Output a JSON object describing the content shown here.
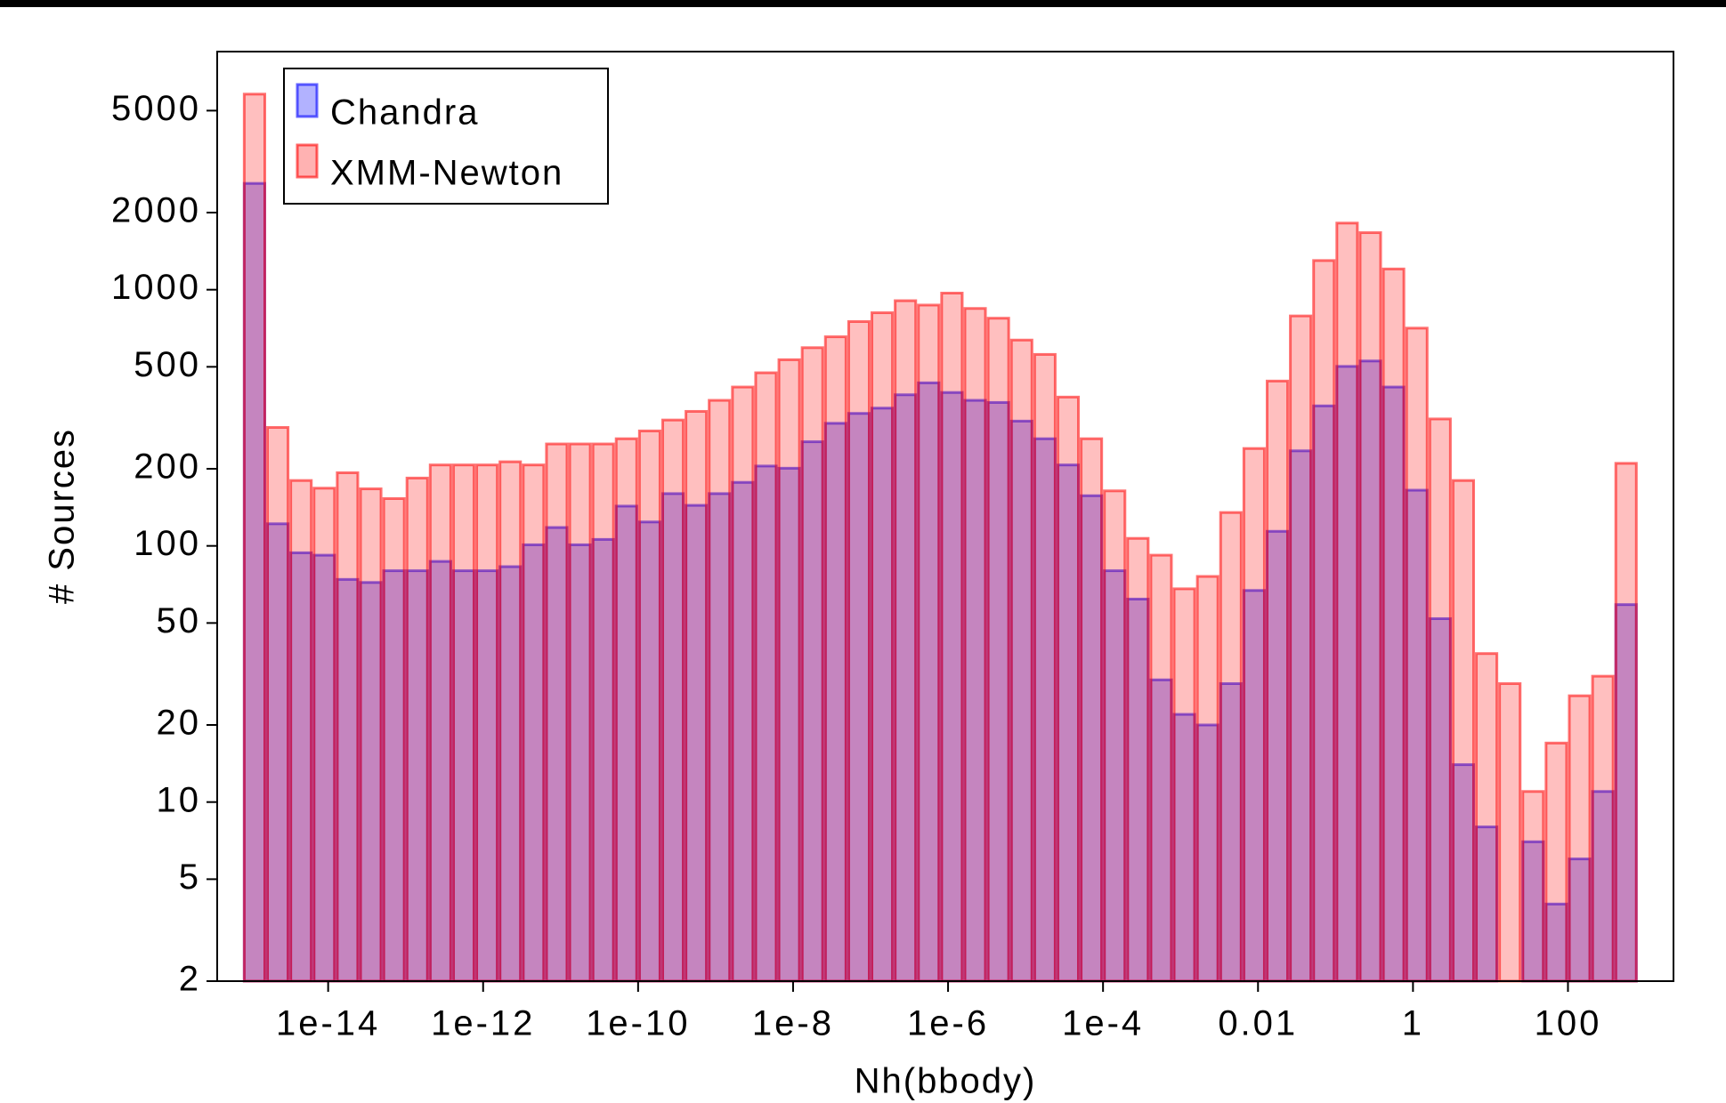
{
  "chart_data": {
    "type": "histogram",
    "x_label": "Nh(bbody)",
    "y_label": "# Sources",
    "xscale": "log",
    "yscale": "log",
    "xlim": [
      3.7e-16,
      2300
    ],
    "ylim": [
      2,
      8500
    ],
    "xticks": [
      1e-14,
      1e-12,
      1e-10,
      1e-08,
      {
        "value": 1e-06,
        "label": "1e-6"
      },
      {
        "value": 0.0001,
        "label": "1e-4"
      },
      0.01,
      1,
      100
    ],
    "yticks": [
      2,
      5,
      10,
      20,
      50,
      100,
      200,
      500,
      1000,
      2000,
      5000
    ],
    "legend": "upper left",
    "bins": [
      7.94e-16,
      1.585e-15,
      3.162e-15,
      6.31e-15,
      1.259e-14,
      2.512e-14,
      5.012e-14,
      1e-13,
      1.995e-13,
      3.981e-13,
      7.94e-13,
      1.585e-12,
      3.162e-12,
      6.31e-12,
      1.259e-11,
      2.512e-11,
      5.012e-11,
      1e-10,
      1.995e-10,
      3.981e-10,
      7.94e-10,
      1.585e-09,
      3.162e-09,
      6.31e-09,
      1.259e-08,
      2.512e-08,
      5.012e-08,
      1e-07,
      1.995e-07,
      3.981e-07,
      7.94e-07,
      1.585e-06,
      3.162e-06,
      6.31e-06,
      1.259e-05,
      2.512e-05,
      5.012e-05,
      0.0001,
      0.0001995,
      0.0003981,
      0.000794,
      0.001585,
      0.003162,
      0.00631,
      0.01259,
      0.02512,
      0.05012,
      0.1,
      0.1995,
      0.3981,
      0.794,
      1.585,
      3.162,
      6.31,
      12.59,
      25.12,
      50.12,
      100,
      199.5,
      398.1,
      794
    ],
    "series": [
      {
        "name": "Chandra",
        "color": "#0000ff",
        "values": [
          2600,
          122,
          94,
          92,
          74,
          72,
          80,
          80,
          87,
          80,
          80,
          83,
          101,
          118,
          101,
          106,
          143,
          124,
          160,
          144,
          160,
          177,
          205,
          201,
          255,
          301,
          329,
          345,
          389,
          433,
          397,
          370,
          363,
          307,
          262,
          207,
          157,
          80,
          62,
          30,
          22,
          20,
          29,
          67,
          114,
          235,
          352,
          502,
          527,
          417,
          165,
          52,
          14,
          8,
          0,
          7,
          4,
          6,
          11,
          59
        ]
      },
      {
        "name": "XMM-Newton",
        "color": "#ff0000",
        "values": [
          5800,
          290,
          180,
          168,
          193,
          167,
          153,
          184,
          207,
          207,
          207,
          213,
          207,
          250,
          250,
          250,
          262,
          281,
          310,
          335,
          370,
          417,
          474,
          533,
          594,
          655,
          751,
          813,
          906,
          871,
          970,
          845,
          774,
          636,
          559,
          381,
          262,
          164,
          107,
          92,
          68,
          76,
          135,
          240,
          440,
          790,
          1300,
          1820,
          1670,
          1205,
          708,
          313,
          180,
          38,
          29,
          11,
          17,
          26,
          31,
          210
        ]
      }
    ]
  }
}
